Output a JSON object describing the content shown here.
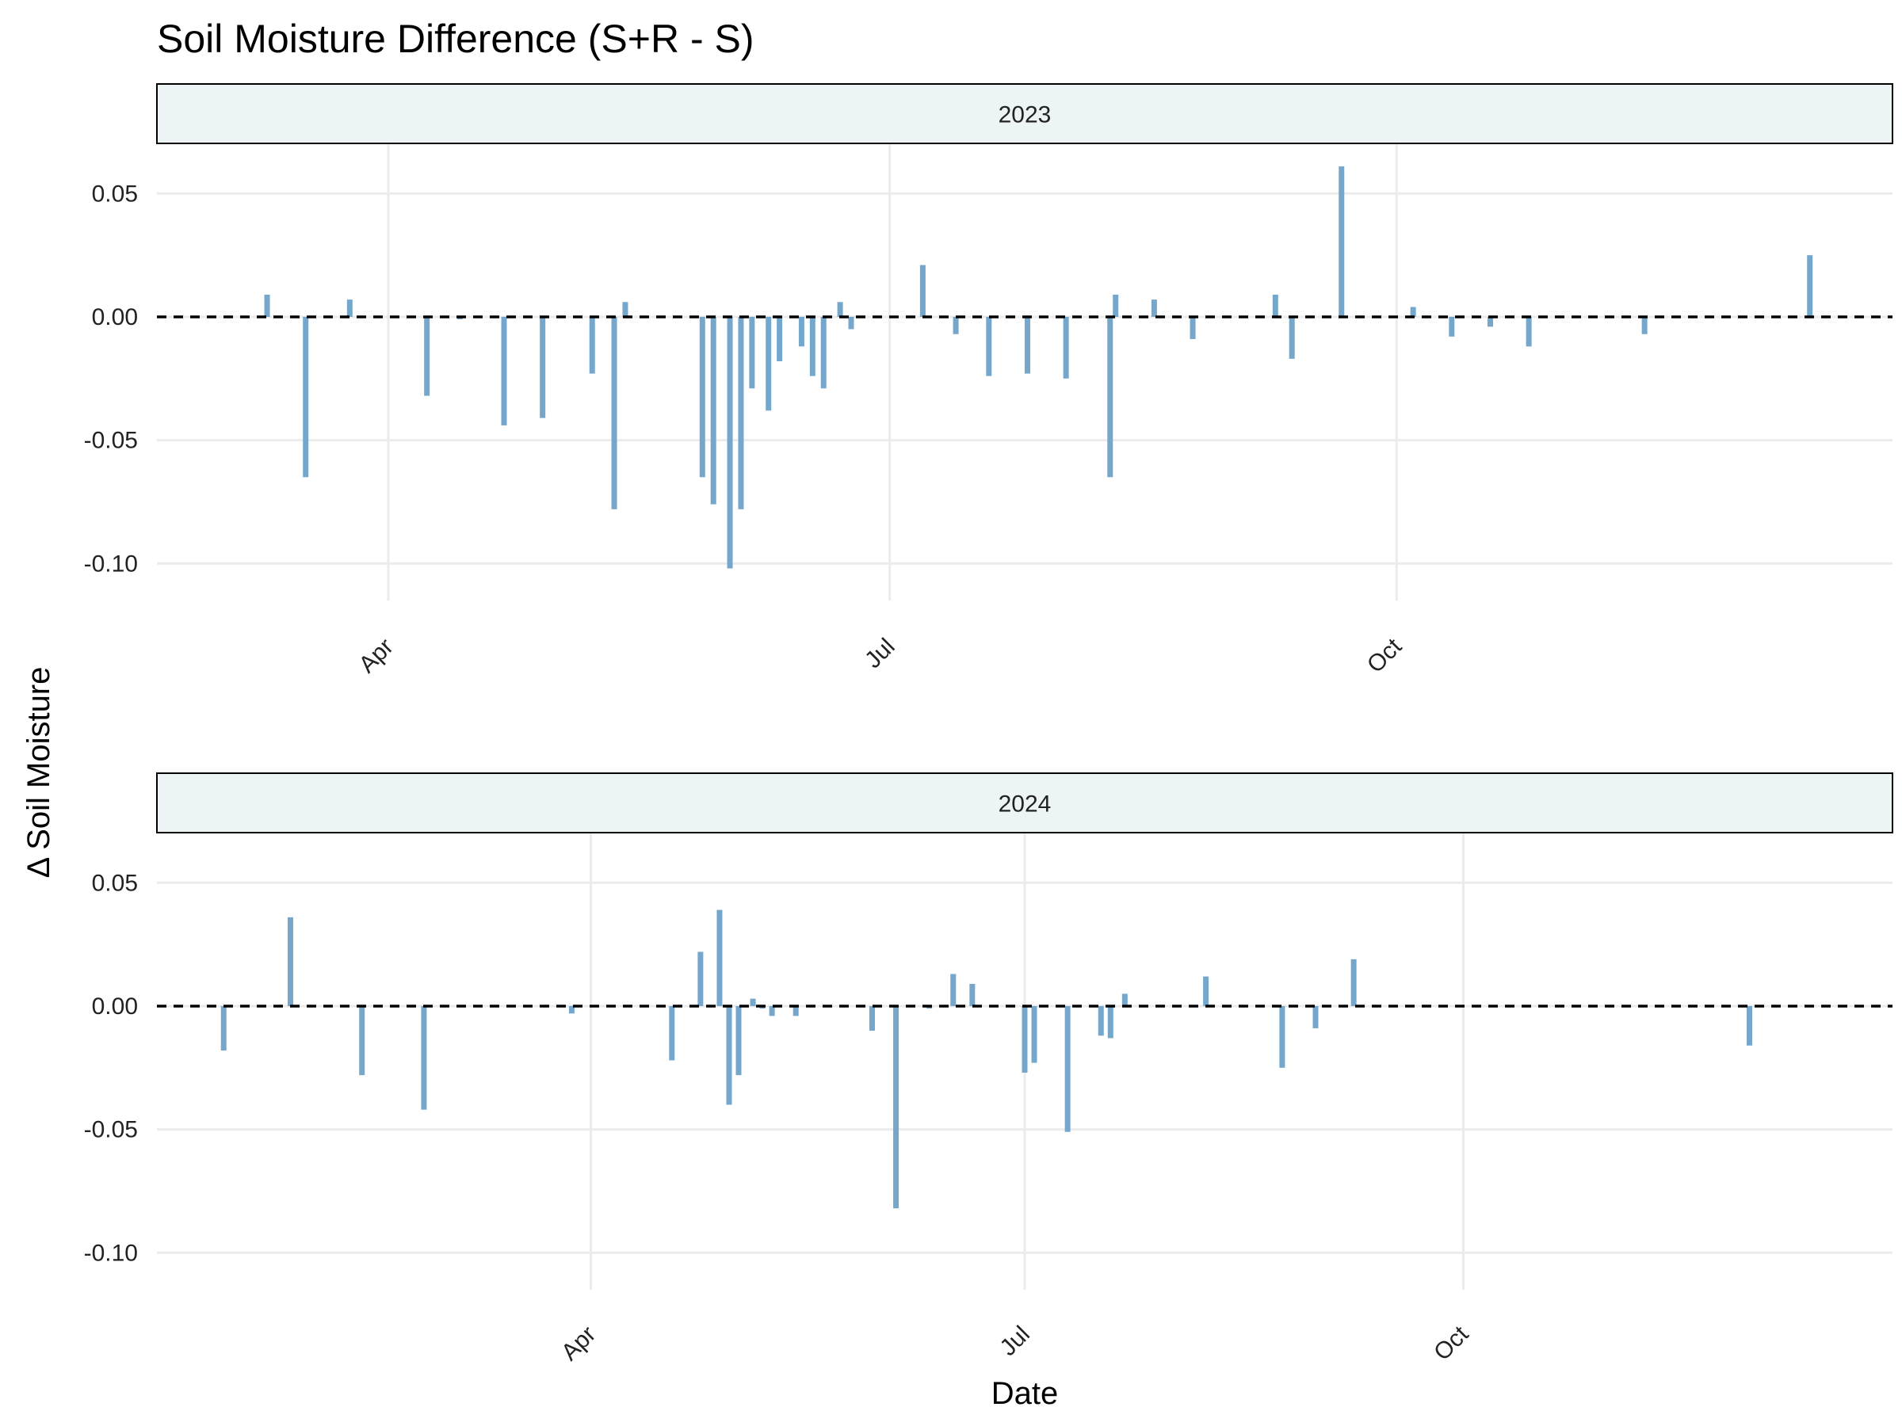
{
  "chart_data": {
    "type": "bar",
    "title": "Soil Moisture Difference (S+R - S)",
    "xlabel": "Date",
    "ylabel": "Δ Soil Moisture",
    "ylim": [
      -0.115,
      0.07
    ],
    "y_ticks": [
      {
        "value": 0.05,
        "label": "0.05"
      },
      {
        "value": 0.0,
        "label": "0.00"
      },
      {
        "value": -0.05,
        "label": "-0.05"
      },
      {
        "value": -0.1,
        "label": "-0.10"
      }
    ],
    "reference_line": {
      "y": 0,
      "style": "dashed"
    },
    "grid": true,
    "colors": {
      "bar": "#75a7cc",
      "strip_fill": "#ecf4f6",
      "grid": "#ebebeb",
      "zero_line": "#000000"
    },
    "panels": [
      {
        "strip_label": "2023",
        "xlim": [
          "2023-02-18",
          "2023-12-30"
        ],
        "x_ticks": [
          {
            "date": "2023-04-01",
            "label": "Apr"
          },
          {
            "date": "2023-07-01",
            "label": "Jul"
          },
          {
            "date": "2023-10-01",
            "label": "Oct"
          }
        ],
        "points": [
          {
            "date": "2023-03-10",
            "value": 0.009
          },
          {
            "date": "2023-03-17",
            "value": -0.065
          },
          {
            "date": "2023-03-25",
            "value": 0.007
          },
          {
            "date": "2023-04-08",
            "value": -0.032
          },
          {
            "date": "2023-04-14",
            "value": -0.001
          },
          {
            "date": "2023-04-22",
            "value": -0.044
          },
          {
            "date": "2023-04-29",
            "value": -0.041
          },
          {
            "date": "2023-05-08",
            "value": -0.023
          },
          {
            "date": "2023-05-12",
            "value": -0.078
          },
          {
            "date": "2023-05-14",
            "value": 0.006
          },
          {
            "date": "2023-05-28",
            "value": -0.065
          },
          {
            "date": "2023-05-30",
            "value": -0.076
          },
          {
            "date": "2023-06-02",
            "value": -0.102
          },
          {
            "date": "2023-06-04",
            "value": -0.078
          },
          {
            "date": "2023-06-06",
            "value": -0.029
          },
          {
            "date": "2023-06-09",
            "value": -0.038
          },
          {
            "date": "2023-06-11",
            "value": -0.018
          },
          {
            "date": "2023-06-15",
            "value": -0.012
          },
          {
            "date": "2023-06-17",
            "value": -0.024
          },
          {
            "date": "2023-06-19",
            "value": -0.029
          },
          {
            "date": "2023-06-22",
            "value": 0.006
          },
          {
            "date": "2023-06-24",
            "value": -0.005
          },
          {
            "date": "2023-07-07",
            "value": 0.021
          },
          {
            "date": "2023-07-13",
            "value": -0.007
          },
          {
            "date": "2023-07-19",
            "value": -0.024
          },
          {
            "date": "2023-07-26",
            "value": -0.023
          },
          {
            "date": "2023-08-02",
            "value": -0.025
          },
          {
            "date": "2023-08-10",
            "value": -0.065
          },
          {
            "date": "2023-08-11",
            "value": 0.009
          },
          {
            "date": "2023-08-18",
            "value": 0.007
          },
          {
            "date": "2023-08-25",
            "value": -0.009
          },
          {
            "date": "2023-09-09",
            "value": 0.009
          },
          {
            "date": "2023-09-12",
            "value": -0.017
          },
          {
            "date": "2023-09-21",
            "value": 0.061
          },
          {
            "date": "2023-10-04",
            "value": 0.004
          },
          {
            "date": "2023-10-11",
            "value": -0.008
          },
          {
            "date": "2023-10-18",
            "value": -0.004
          },
          {
            "date": "2023-10-25",
            "value": -0.012
          },
          {
            "date": "2023-11-15",
            "value": -0.007
          },
          {
            "date": "2023-12-15",
            "value": 0.025
          }
        ]
      },
      {
        "strip_label": "2024",
        "xlim": [
          "2024-01-01",
          "2024-12-30"
        ],
        "x_ticks": [
          {
            "date": "2024-04-01",
            "label": "Apr"
          },
          {
            "date": "2024-07-01",
            "label": "Jul"
          },
          {
            "date": "2024-10-01",
            "label": "Oct"
          }
        ],
        "points": [
          {
            "date": "2024-01-15",
            "value": -0.018
          },
          {
            "date": "2024-01-29",
            "value": 0.036
          },
          {
            "date": "2024-02-13",
            "value": -0.028
          },
          {
            "date": "2024-02-26",
            "value": -0.042
          },
          {
            "date": "2024-03-28",
            "value": -0.003
          },
          {
            "date": "2024-04-18",
            "value": -0.022
          },
          {
            "date": "2024-04-24",
            "value": 0.022
          },
          {
            "date": "2024-04-28",
            "value": 0.039
          },
          {
            "date": "2024-04-30",
            "value": -0.04
          },
          {
            "date": "2024-05-02",
            "value": -0.028
          },
          {
            "date": "2024-05-05",
            "value": 0.003
          },
          {
            "date": "2024-05-07",
            "value": -0.001
          },
          {
            "date": "2024-05-09",
            "value": -0.004
          },
          {
            "date": "2024-05-14",
            "value": -0.004
          },
          {
            "date": "2024-05-30",
            "value": -0.01
          },
          {
            "date": "2024-06-04",
            "value": -0.082
          },
          {
            "date": "2024-06-11",
            "value": -0.001
          },
          {
            "date": "2024-06-16",
            "value": 0.013
          },
          {
            "date": "2024-06-20",
            "value": 0.009
          },
          {
            "date": "2024-07-01",
            "value": -0.027
          },
          {
            "date": "2024-07-03",
            "value": -0.023
          },
          {
            "date": "2024-07-10",
            "value": -0.051
          },
          {
            "date": "2024-07-17",
            "value": -0.012
          },
          {
            "date": "2024-07-19",
            "value": -0.013
          },
          {
            "date": "2024-07-22",
            "value": 0.005
          },
          {
            "date": "2024-08-08",
            "value": 0.012
          },
          {
            "date": "2024-08-24",
            "value": -0.025
          },
          {
            "date": "2024-08-31",
            "value": -0.009
          },
          {
            "date": "2024-09-08",
            "value": 0.019
          },
          {
            "date": "2024-11-30",
            "value": -0.016
          }
        ]
      }
    ]
  }
}
